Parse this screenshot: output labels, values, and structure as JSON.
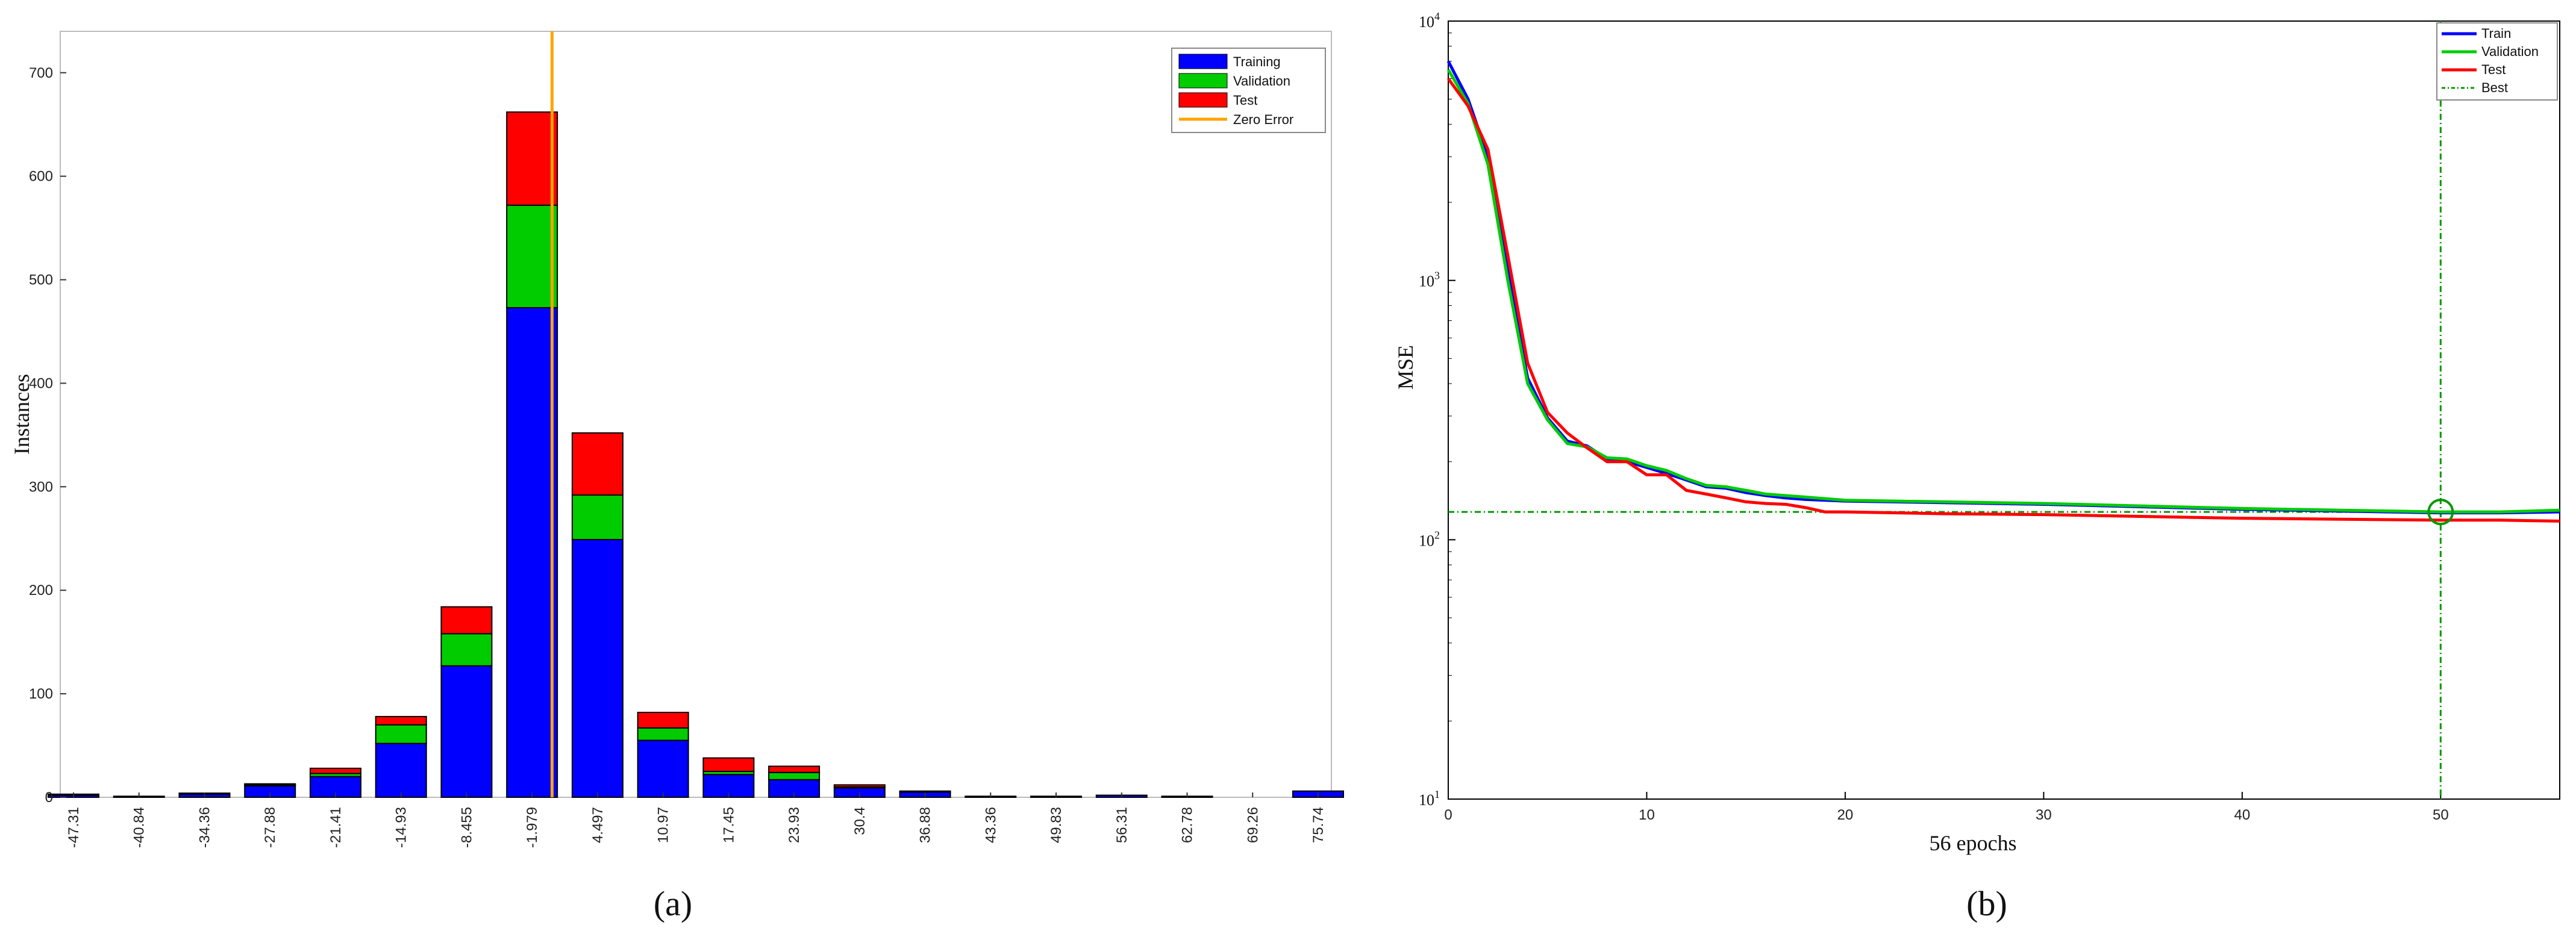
{
  "colors": {
    "training": "#0000ff",
    "validation": "#00cc00",
    "test": "#ff0000",
    "zero_error": "#ffa500",
    "best": "#009900"
  },
  "chart_data": [
    {
      "panel_label": "(a)",
      "type": "bar",
      "stacked": true,
      "title": "",
      "xlabel": "",
      "ylabel": "Instances",
      "ylim": [
        0,
        740
      ],
      "yticks": [
        0,
        100,
        200,
        300,
        400,
        500,
        600,
        700
      ],
      "categories": [
        "-47.31",
        "-40.84",
        "-34.36",
        "-27.88",
        "-21.41",
        "-14.93",
        "-8.455",
        "-1.979",
        "4.497",
        "10.97",
        "17.45",
        "23.93",
        "30.4",
        "36.88",
        "43.36",
        "49.83",
        "56.31",
        "62.78",
        "69.26",
        "75.74"
      ],
      "series": [
        {
          "name": "Training",
          "values": [
            2,
            1,
            3,
            11,
            20,
            52,
            127,
            473,
            249,
            55,
            22,
            17,
            9,
            5,
            1,
            1,
            2,
            1,
            0,
            6
          ]
        },
        {
          "name": "Validation",
          "values": [
            1,
            0,
            1,
            1,
            3,
            18,
            31,
            99,
            43,
            12,
            3,
            7,
            1,
            1,
            0,
            0,
            0,
            0,
            0,
            0
          ]
        },
        {
          "name": "Test",
          "values": [
            0,
            0,
            0,
            1,
            5,
            8,
            26,
            90,
            60,
            15,
            13,
            6,
            2,
            0,
            0,
            0,
            0,
            0,
            0,
            0
          ]
        }
      ],
      "reference_line": {
        "name": "Zero Error",
        "x": 0
      },
      "legend": [
        "Training",
        "Validation",
        "Test",
        "Zero Error"
      ],
      "legend_position": "top-right",
      "grid": false
    },
    {
      "panel_label": "(b)",
      "type": "line",
      "title": "",
      "xlabel": "56 epochs",
      "ylabel": "MSE",
      "y_scale": "log",
      "xlim": [
        0,
        56
      ],
      "ylim": [
        10,
        10000
      ],
      "xticks": [
        0,
        10,
        20,
        30,
        40,
        50
      ],
      "yticks": [
        {
          "value": 10,
          "base": "10",
          "exp": "1"
        },
        {
          "value": 100,
          "base": "10",
          "exp": "2"
        },
        {
          "value": 1000,
          "base": "10",
          "exp": "3"
        },
        {
          "value": 10000,
          "base": "10",
          "exp": "4"
        }
      ],
      "x": [
        0,
        1,
        2,
        3,
        4,
        5,
        6,
        7,
        8,
        9,
        10,
        11,
        12,
        13,
        14,
        15,
        16,
        17,
        18,
        19,
        20,
        25,
        30,
        35,
        40,
        45,
        50,
        53,
        56
      ],
      "series": [
        {
          "name": "Train",
          "values": [
            7000,
            5000,
            3000,
            1100,
            420,
            295,
            240,
            230,
            205,
            200,
            190,
            180,
            170,
            160,
            158,
            152,
            148,
            145,
            143,
            142,
            141,
            139,
            137,
            134,
            131,
            129,
            127,
            127,
            128
          ]
        },
        {
          "name": "Validation",
          "values": [
            6500,
            4800,
            2800,
            1000,
            400,
            290,
            235,
            228,
            207,
            205,
            193,
            185,
            172,
            162,
            160,
            155,
            150,
            148,
            146,
            144,
            142,
            140,
            138,
            135,
            132,
            130,
            128,
            128,
            130
          ]
        },
        {
          "name": "Test",
          "values": [
            6000,
            4700,
            3200,
            1250,
            480,
            310,
            258,
            226,
            200,
            200,
            178,
            178,
            155,
            150,
            145,
            140,
            138,
            137,
            133,
            128,
            128,
            126,
            125,
            123,
            121,
            120,
            119,
            119,
            118
          ]
        }
      ],
      "best": {
        "name": "Best",
        "epoch": 50,
        "value": 128
      },
      "legend": [
        "Train",
        "Validation",
        "Test",
        "Best"
      ],
      "legend_position": "top-right",
      "grid": false
    }
  ]
}
